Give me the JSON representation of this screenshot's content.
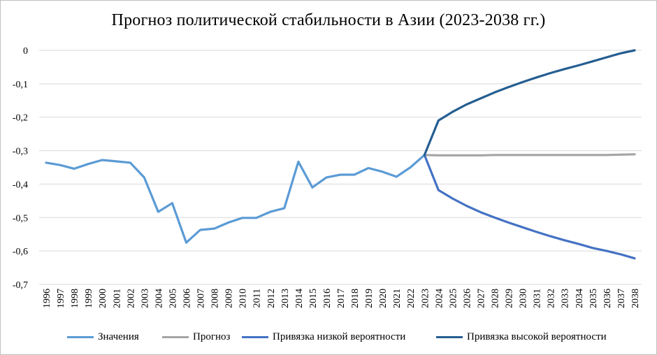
{
  "chart_data": {
    "type": "line",
    "title": "Прогноз политической стабильности в Азии (2023-2038 гг.)",
    "xlabel": "",
    "ylabel": "",
    "ylim": [
      -0.7,
      0
    ],
    "yticks": [
      0,
      -0.1,
      -0.2,
      -0.3,
      -0.4,
      -0.5,
      -0.6,
      -0.7
    ],
    "ytick_labels": [
      "0",
      "-0,1",
      "-0,2",
      "-0,3",
      "-0,4",
      "-0,5",
      "-0,6",
      "-0,7"
    ],
    "grid": true,
    "legend_position": "bottom",
    "x": [
      "1996",
      "1997",
      "1998",
      "1999",
      "2000",
      "2001",
      "2002",
      "2003",
      "2004",
      "2005",
      "2006",
      "2007",
      "2008",
      "2009",
      "2010",
      "2011",
      "2012",
      "2013",
      "2014",
      "2015",
      "2016",
      "2017",
      "2018",
      "2019",
      "2020",
      "2021",
      "2022",
      "2023",
      "2024",
      "2025",
      "2026",
      "2027",
      "2028",
      "2029",
      "2030",
      "2031",
      "2032",
      "2033",
      "2034",
      "2035",
      "2036",
      "2037",
      "2038"
    ],
    "series": [
      {
        "name": "Значения",
        "color": "#5b9bd5",
        "values": [
          -0.336,
          -0.343,
          -0.354,
          -0.34,
          -0.328,
          -0.332,
          -0.336,
          -0.38,
          -0.483,
          -0.457,
          -0.575,
          -0.537,
          -0.533,
          -0.515,
          -0.501,
          -0.501,
          -0.483,
          -0.472,
          -0.333,
          -0.41,
          -0.38,
          -0.372,
          -0.372,
          -0.352,
          -0.363,
          -0.378,
          -0.35,
          -0.313,
          null,
          null,
          null,
          null,
          null,
          null,
          null,
          null,
          null,
          null,
          null,
          null,
          null,
          null,
          null
        ]
      },
      {
        "name": "Прогноз",
        "color": "#a5a5a5",
        "values": [
          null,
          null,
          null,
          null,
          null,
          null,
          null,
          null,
          null,
          null,
          null,
          null,
          null,
          null,
          null,
          null,
          null,
          null,
          null,
          null,
          null,
          null,
          null,
          null,
          null,
          null,
          null,
          -0.313,
          -0.314,
          -0.314,
          -0.314,
          -0.314,
          -0.313,
          -0.313,
          -0.313,
          -0.313,
          -0.313,
          -0.313,
          -0.313,
          -0.313,
          -0.313,
          -0.312,
          -0.311
        ]
      },
      {
        "name": "Привязка низкой вероятности",
        "color": "#4472c4",
        "values": [
          null,
          null,
          null,
          null,
          null,
          null,
          null,
          null,
          null,
          null,
          null,
          null,
          null,
          null,
          null,
          null,
          null,
          null,
          null,
          null,
          null,
          null,
          null,
          null,
          null,
          null,
          null,
          -0.313,
          -0.418,
          -0.443,
          -0.465,
          -0.484,
          -0.5,
          -0.515,
          -0.529,
          -0.543,
          -0.556,
          -0.568,
          -0.579,
          -0.591,
          -0.6,
          -0.61,
          -0.622
        ]
      },
      {
        "name": "Привязка высокой вероятности",
        "color": "#255e91",
        "values": [
          null,
          null,
          null,
          null,
          null,
          null,
          null,
          null,
          null,
          null,
          null,
          null,
          null,
          null,
          null,
          null,
          null,
          null,
          null,
          null,
          null,
          null,
          null,
          null,
          null,
          null,
          null,
          -0.313,
          -0.21,
          -0.184,
          -0.162,
          -0.144,
          -0.126,
          -0.11,
          -0.095,
          -0.081,
          -0.068,
          -0.056,
          -0.045,
          -0.033,
          -0.021,
          -0.009,
          0.0
        ]
      }
    ]
  }
}
